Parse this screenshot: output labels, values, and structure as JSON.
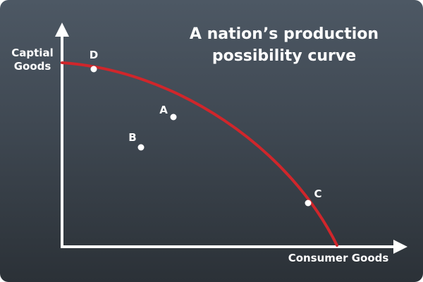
{
  "title": {
    "line1": "A nation’s production",
    "line2": "possibility curve"
  },
  "axes": {
    "y_label_line1": "Captial",
    "y_label_line2": "Goods",
    "x_label": "Consumer Goods"
  },
  "points": {
    "a": "A",
    "b": "B",
    "c": "C",
    "d": "D"
  },
  "colors": {
    "background_top": "#4d5864",
    "background_bottom": "#2b3137",
    "curve": "#d0262b",
    "axis": "#ffffff",
    "point": "#ffffff"
  }
}
